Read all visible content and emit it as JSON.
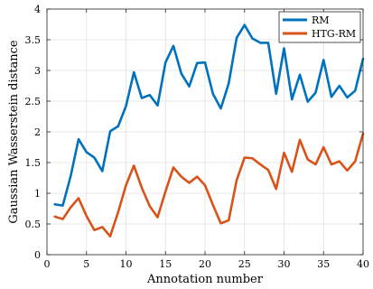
{
  "chart_data": {
    "type": "line",
    "xlabel": "Annotation number",
    "ylabel": "Gaussian Wasserstein distance",
    "xlim": [
      0,
      40
    ],
    "ylim": [
      0,
      4
    ],
    "xticks": [
      0,
      5,
      10,
      15,
      20,
      25,
      30,
      35,
      40
    ],
    "yticks": [
      0,
      0.5,
      1,
      1.5,
      2,
      2.5,
      3,
      3.5,
      4
    ],
    "xtick_labels": [
      "0",
      "5",
      "10",
      "15",
      "20",
      "25",
      "30",
      "35",
      "40"
    ],
    "ytick_labels": [
      "0",
      "0.5",
      "1",
      "1.5",
      "2",
      "2.5",
      "3",
      "3.5",
      "4"
    ],
    "grid": true,
    "legend_position": "top-right",
    "x": [
      1,
      2,
      3,
      4,
      5,
      6,
      7,
      8,
      9,
      10,
      11,
      12,
      13,
      14,
      15,
      16,
      17,
      18,
      19,
      20,
      21,
      22,
      23,
      24,
      25,
      26,
      27,
      28,
      29,
      30,
      31,
      32,
      33,
      34,
      35,
      36,
      37,
      38,
      39,
      40
    ],
    "series": [
      {
        "name": "RM",
        "color": "#0072bd",
        "values": [
          0.82,
          0.8,
          1.28,
          1.88,
          1.67,
          1.58,
          1.36,
          2.01,
          2.09,
          2.42,
          2.97,
          2.55,
          2.6,
          2.43,
          3.13,
          3.4,
          2.95,
          2.74,
          3.12,
          3.13,
          2.62,
          2.38,
          2.79,
          3.53,
          3.74,
          3.52,
          3.45,
          3.45,
          2.62,
          3.36,
          2.53,
          2.93,
          2.49,
          2.64,
          3.17,
          2.57,
          2.75,
          2.56,
          2.67,
          3.19
        ]
      },
      {
        "name": "HTG-RM",
        "color": "#d95319",
        "values": [
          0.62,
          0.58,
          0.77,
          0.92,
          0.63,
          0.4,
          0.45,
          0.3,
          0.69,
          1.13,
          1.45,
          1.09,
          0.79,
          0.61,
          1.03,
          1.42,
          1.27,
          1.17,
          1.27,
          1.13,
          0.81,
          0.51,
          0.56,
          1.21,
          1.58,
          1.57,
          1.47,
          1.38,
          1.07,
          1.66,
          1.35,
          1.87,
          1.55,
          1.47,
          1.75,
          1.47,
          1.52,
          1.37,
          1.52,
          1.97
        ]
      }
    ]
  }
}
